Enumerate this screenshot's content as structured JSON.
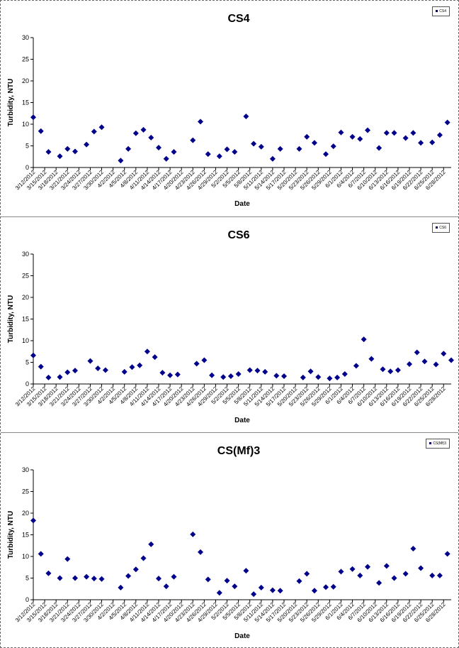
{
  "chart_data": [
    {
      "type": "scatter",
      "title": "CS4",
      "xlabel": "Date",
      "ylabel": "Turbidity, NTU",
      "ylim": [
        0,
        30
      ],
      "yticks": [
        0,
        5,
        10,
        15,
        20,
        25,
        30
      ],
      "legend": {
        "position": "top-right",
        "entries": [
          "CS4"
        ]
      },
      "marker_color": "#00008b",
      "x_ticks": [
        "3/12/2012",
        "3/15/2012",
        "3/18/2012",
        "3/21/2012",
        "3/24/2012",
        "3/27/2012",
        "3/30/2012",
        "4/2/2012",
        "4/5/2012",
        "4/8/2012",
        "4/11/2012",
        "4/14/2012",
        "4/17/2012",
        "4/20/2012",
        "4/23/2012",
        "4/26/2012",
        "4/29/2012",
        "5/2/2012",
        "5/5/2012",
        "5/8/2012",
        "5/11/2012",
        "5/14/2012",
        "5/17/2012",
        "5/20/2012",
        "5/23/2012",
        "5/26/2012",
        "5/29/2012",
        "6/1/2012",
        "6/4/2012",
        "6/7/2012",
        "6/10/2012",
        "6/13/2012",
        "6/16/2012",
        "6/19/2012",
        "6/22/2012",
        "6/25/2012",
        "6/28/2012"
      ],
      "points": [
        {
          "x": "3/12/2012",
          "y": 11.6
        },
        {
          "x": "3/14/2012",
          "y": 8.4
        },
        {
          "x": "3/16/2012",
          "y": 3.6
        },
        {
          "x": "3/19/2012",
          "y": 2.6
        },
        {
          "x": "3/21/2012",
          "y": 4.3
        },
        {
          "x": "3/23/2012",
          "y": 3.7
        },
        {
          "x": "3/26/2012",
          "y": 5.3
        },
        {
          "x": "3/28/2012",
          "y": 8.3
        },
        {
          "x": "3/30/2012",
          "y": 9.3
        },
        {
          "x": "4/4/2012",
          "y": 1.6
        },
        {
          "x": "4/6/2012",
          "y": 4.3
        },
        {
          "x": "4/8/2012",
          "y": 7.9
        },
        {
          "x": "4/10/2012",
          "y": 8.7
        },
        {
          "x": "4/12/2012",
          "y": 6.9
        },
        {
          "x": "4/14/2012",
          "y": 4.6
        },
        {
          "x": "4/16/2012",
          "y": 2.0
        },
        {
          "x": "4/18/2012",
          "y": 3.6
        },
        {
          "x": "4/23/2012",
          "y": 6.3
        },
        {
          "x": "4/25/2012",
          "y": 10.6
        },
        {
          "x": "4/27/2012",
          "y": 3.1
        },
        {
          "x": "4/30/2012",
          "y": 2.6
        },
        {
          "x": "5/2/2012",
          "y": 4.2
        },
        {
          "x": "5/4/2012",
          "y": 3.6
        },
        {
          "x": "5/7/2012",
          "y": 11.8
        },
        {
          "x": "5/9/2012",
          "y": 5.5
        },
        {
          "x": "5/11/2012",
          "y": 4.8
        },
        {
          "x": "5/14/2012",
          "y": 2.0
        },
        {
          "x": "5/16/2012",
          "y": 4.3
        },
        {
          "x": "5/21/2012",
          "y": 4.3
        },
        {
          "x": "5/23/2012",
          "y": 7.1
        },
        {
          "x": "5/25/2012",
          "y": 5.7
        },
        {
          "x": "5/28/2012",
          "y": 3.1
        },
        {
          "x": "5/30/2012",
          "y": 4.9
        },
        {
          "x": "6/1/2012",
          "y": 8.1
        },
        {
          "x": "6/4/2012",
          "y": 7.1
        },
        {
          "x": "6/6/2012",
          "y": 6.6
        },
        {
          "x": "6/8/2012",
          "y": 8.6
        },
        {
          "x": "6/11/2012",
          "y": 4.5
        },
        {
          "x": "6/13/2012",
          "y": 8.0
        },
        {
          "x": "6/15/2012",
          "y": 8.0
        },
        {
          "x": "6/18/2012",
          "y": 6.8
        },
        {
          "x": "6/20/2012",
          "y": 8.0
        },
        {
          "x": "6/22/2012",
          "y": 5.7
        },
        {
          "x": "6/25/2012",
          "y": 5.8
        },
        {
          "x": "6/27/2012",
          "y": 7.5
        },
        {
          "x": "6/29/2012",
          "y": 10.4
        }
      ]
    },
    {
      "type": "scatter",
      "title": "CS6",
      "xlabel": "Date",
      "ylabel": "Turbidity, NTU",
      "ylim": [
        0,
        30
      ],
      "yticks": [
        0,
        5,
        10,
        15,
        20,
        25,
        30
      ],
      "legend": {
        "position": "top-right",
        "entries": [
          "CS6"
        ]
      },
      "marker_color": "#00008b",
      "x_ticks": [
        "3/12/2012",
        "3/15/2012",
        "3/18/2012",
        "3/21/2012",
        "3/24/2012",
        "3/27/2012",
        "3/30/2012",
        "4/2/2012",
        "4/5/2012",
        "4/8/2012",
        "4/11/2012",
        "4/14/2012",
        "4/17/2012",
        "4/20/2012",
        "4/23/2012",
        "4/26/2012",
        "4/29/2012",
        "5/2/2012",
        "5/5/2012",
        "5/8/2012",
        "5/11/2012",
        "5/14/2012",
        "5/17/2012",
        "5/20/2012",
        "5/23/2012",
        "5/26/2012",
        "5/29/2012",
        "6/1/2012",
        "6/4/2012",
        "6/7/2012",
        "6/10/2012",
        "6/13/2012",
        "6/16/2012",
        "6/19/2012",
        "6/22/2012",
        "6/25/2012",
        "6/28/2012"
      ],
      "points": [
        {
          "x": "3/12/2012",
          "y": 6.6
        },
        {
          "x": "3/14/2012",
          "y": 4.0
        },
        {
          "x": "3/16/2012",
          "y": 1.5
        },
        {
          "x": "3/19/2012",
          "y": 1.6
        },
        {
          "x": "3/21/2012",
          "y": 2.7
        },
        {
          "x": "3/23/2012",
          "y": 3.1
        },
        {
          "x": "3/27/2012",
          "y": 5.3
        },
        {
          "x": "3/29/2012",
          "y": 3.6
        },
        {
          "x": "3/31/2012",
          "y": 3.2
        },
        {
          "x": "4/5/2012",
          "y": 2.8
        },
        {
          "x": "4/7/2012",
          "y": 3.9
        },
        {
          "x": "4/9/2012",
          "y": 4.3
        },
        {
          "x": "4/11/2012",
          "y": 7.5
        },
        {
          "x": "4/13/2012",
          "y": 6.2
        },
        {
          "x": "4/15/2012",
          "y": 2.6
        },
        {
          "x": "4/17/2012",
          "y": 2.0
        },
        {
          "x": "4/19/2012",
          "y": 2.2
        },
        {
          "x": "4/24/2012",
          "y": 4.7
        },
        {
          "x": "4/26/2012",
          "y": 5.5
        },
        {
          "x": "4/28/2012",
          "y": 2.0
        },
        {
          "x": "5/1/2012",
          "y": 1.6
        },
        {
          "x": "5/3/2012",
          "y": 1.8
        },
        {
          "x": "5/5/2012",
          "y": 2.3
        },
        {
          "x": "5/8/2012",
          "y": 3.2
        },
        {
          "x": "5/10/2012",
          "y": 3.1
        },
        {
          "x": "5/12/2012",
          "y": 2.8
        },
        {
          "x": "5/15/2012",
          "y": 1.9
        },
        {
          "x": "5/17/2012",
          "y": 1.8
        },
        {
          "x": "5/22/2012",
          "y": 1.5
        },
        {
          "x": "5/24/2012",
          "y": 2.9
        },
        {
          "x": "5/26/2012",
          "y": 1.6
        },
        {
          "x": "5/29/2012",
          "y": 1.3
        },
        {
          "x": "5/31/2012",
          "y": 1.5
        },
        {
          "x": "6/2/2012",
          "y": 2.3
        },
        {
          "x": "6/5/2012",
          "y": 4.2
        },
        {
          "x": "6/7/2012",
          "y": 10.3
        },
        {
          "x": "6/9/2012",
          "y": 5.8
        },
        {
          "x": "6/12/2012",
          "y": 3.4
        },
        {
          "x": "6/14/2012",
          "y": 2.9
        },
        {
          "x": "6/16/2012",
          "y": 3.2
        },
        {
          "x": "6/19/2012",
          "y": 4.6
        },
        {
          "x": "6/21/2012",
          "y": 7.3
        },
        {
          "x": "6/23/2012",
          "y": 5.2
        },
        {
          "x": "6/26/2012",
          "y": 4.5
        },
        {
          "x": "6/28/2012",
          "y": 7.0
        },
        {
          "x": "6/30/2012",
          "y": 5.5
        }
      ]
    },
    {
      "type": "scatter",
      "title": "CS(Mf)3",
      "xlabel": "Date",
      "ylabel": "Turbidity, NTU",
      "ylim": [
        0,
        30
      ],
      "yticks": [
        0,
        5,
        10,
        15,
        20,
        25,
        30
      ],
      "legend": {
        "position": "top-right",
        "entries": [
          "CS(Mf)3"
        ]
      },
      "marker_color": "#00008b",
      "x_ticks": [
        "3/12/2012",
        "3/15/2012",
        "3/18/2012",
        "3/21/2012",
        "3/24/2012",
        "3/27/2012",
        "3/30/2012",
        "4/2/2012",
        "4/5/2012",
        "4/8/2012",
        "4/11/2012",
        "4/14/2012",
        "4/17/2012",
        "4/20/2012",
        "4/23/2012",
        "4/26/2012",
        "4/29/2012",
        "5/2/2012",
        "5/5/2012",
        "5/8/2012",
        "5/11/2012",
        "5/14/2012",
        "5/17/2012",
        "5/20/2012",
        "5/23/2012",
        "5/26/2012",
        "5/29/2012",
        "6/1/2012",
        "6/4/2012",
        "6/7/2012",
        "6/10/2012",
        "6/13/2012",
        "6/16/2012",
        "6/19/2012",
        "6/22/2012",
        "6/25/2012",
        "6/28/2012"
      ],
      "points": [
        {
          "x": "3/12/2012",
          "y": 18.3
        },
        {
          "x": "3/14/2012",
          "y": 10.6
        },
        {
          "x": "3/16/2012",
          "y": 6.1
        },
        {
          "x": "3/19/2012",
          "y": 5.0
        },
        {
          "x": "3/21/2012",
          "y": 9.4
        },
        {
          "x": "3/23/2012",
          "y": 5.0
        },
        {
          "x": "3/26/2012",
          "y": 5.3
        },
        {
          "x": "3/28/2012",
          "y": 4.9
        },
        {
          "x": "3/30/2012",
          "y": 4.8
        },
        {
          "x": "4/4/2012",
          "y": 2.8
        },
        {
          "x": "4/6/2012",
          "y": 5.5
        },
        {
          "x": "4/8/2012",
          "y": 7.0
        },
        {
          "x": "4/10/2012",
          "y": 9.6
        },
        {
          "x": "4/12/2012",
          "y": 12.8
        },
        {
          "x": "4/14/2012",
          "y": 4.9
        },
        {
          "x": "4/16/2012",
          "y": 3.1
        },
        {
          "x": "4/18/2012",
          "y": 5.3
        },
        {
          "x": "4/23/2012",
          "y": 15.1
        },
        {
          "x": "4/25/2012",
          "y": 11.0
        },
        {
          "x": "4/27/2012",
          "y": 4.7
        },
        {
          "x": "4/30/2012",
          "y": 1.6
        },
        {
          "x": "5/2/2012",
          "y": 4.4
        },
        {
          "x": "5/4/2012",
          "y": 3.1
        },
        {
          "x": "5/7/2012",
          "y": 6.7
        },
        {
          "x": "5/9/2012",
          "y": 1.3
        },
        {
          "x": "5/11/2012",
          "y": 2.8
        },
        {
          "x": "5/14/2012",
          "y": 2.2
        },
        {
          "x": "5/16/2012",
          "y": 2.1
        },
        {
          "x": "5/21/2012",
          "y": 4.3
        },
        {
          "x": "5/23/2012",
          "y": 6.0
        },
        {
          "x": "5/25/2012",
          "y": 2.1
        },
        {
          "x": "5/28/2012",
          "y": 2.9
        },
        {
          "x": "5/30/2012",
          "y": 3.0
        },
        {
          "x": "6/1/2012",
          "y": 6.5
        },
        {
          "x": "6/4/2012",
          "y": 7.1
        },
        {
          "x": "6/6/2012",
          "y": 5.6
        },
        {
          "x": "6/8/2012",
          "y": 7.6
        },
        {
          "x": "6/11/2012",
          "y": 3.9
        },
        {
          "x": "6/13/2012",
          "y": 7.8
        },
        {
          "x": "6/15/2012",
          "y": 5.0
        },
        {
          "x": "6/18/2012",
          "y": 6.0
        },
        {
          "x": "6/20/2012",
          "y": 11.8
        },
        {
          "x": "6/22/2012",
          "y": 7.3
        },
        {
          "x": "6/25/2012",
          "y": 5.6
        },
        {
          "x": "6/27/2012",
          "y": 5.6
        },
        {
          "x": "6/29/2012",
          "y": 10.6
        }
      ]
    }
  ]
}
